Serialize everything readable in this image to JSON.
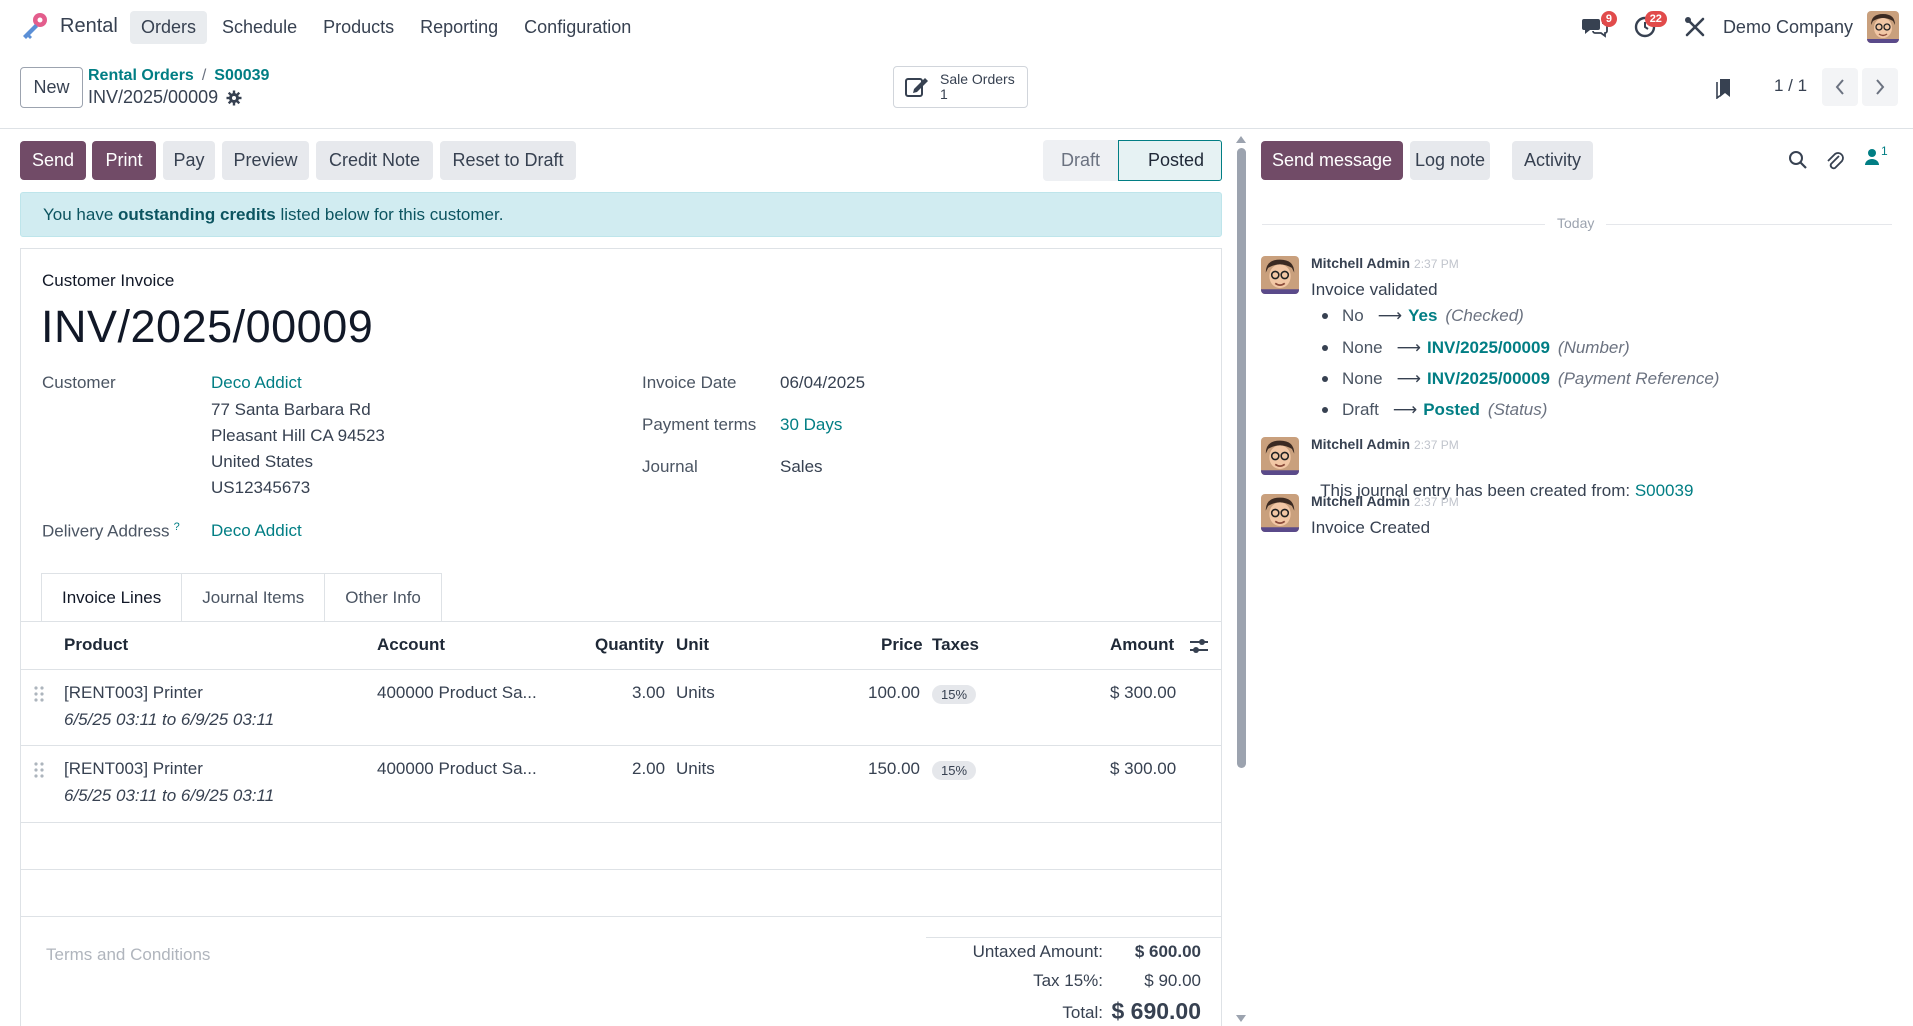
{
  "navbar": {
    "app_name": "Rental",
    "menu": [
      "Orders",
      "Schedule",
      "Products",
      "Reporting",
      "Configuration"
    ],
    "messages_badge": "9",
    "activities_badge": "22",
    "company": "Demo Company"
  },
  "control": {
    "new_label": "New",
    "breadcrumb_parent": "Rental Orders",
    "breadcrumb_sep": "/",
    "breadcrumb_child": "S00039",
    "record_name": "INV/2025/00009",
    "smart_button_label": "Sale Orders",
    "smart_button_count": "1",
    "pager": "1 / 1"
  },
  "actions": {
    "send": "Send",
    "print": "Print",
    "pay": "Pay",
    "preview": "Preview",
    "credit_note": "Credit Note",
    "reset": "Reset to Draft",
    "status_draft": "Draft",
    "status_posted": "Posted"
  },
  "alert": {
    "pre": "You have ",
    "bold": "outstanding credits",
    "post": " listed below for this customer."
  },
  "invoice": {
    "doc_type": "Customer Invoice",
    "name": "INV/2025/00009",
    "customer_label": "Customer",
    "customer": "Deco Addict",
    "address": [
      "77 Santa Barbara Rd",
      "Pleasant Hill CA 94523",
      "United States",
      "US12345673"
    ],
    "delivery_label": "Delivery Address",
    "delivery_help": "?",
    "delivery": "Deco Addict",
    "date_label": "Invoice Date",
    "date": "06/04/2025",
    "terms_label": "Payment terms",
    "terms": "30 Days",
    "journal_label": "Journal",
    "journal": "Sales"
  },
  "tabs": [
    "Invoice Lines",
    "Journal Items",
    "Other Info"
  ],
  "lines": {
    "headers": {
      "product": "Product",
      "account": "Account",
      "quantity": "Quantity",
      "unit": "Unit",
      "price": "Price",
      "taxes": "Taxes",
      "amount": "Amount"
    },
    "rows": [
      {
        "product": "[RENT003] Printer",
        "period": "6/5/25 03:11 to 6/9/25 03:11",
        "account": "400000 Product Sa...",
        "quantity": "3.00",
        "unit": "Units",
        "price": "100.00",
        "tax": "15%",
        "amount": "$ 300.00"
      },
      {
        "product": "[RENT003] Printer",
        "period": "6/5/25 03:11 to 6/9/25 03:11",
        "account": "400000 Product Sa...",
        "quantity": "2.00",
        "unit": "Units",
        "price": "150.00",
        "tax": "15%",
        "amount": "$ 300.00"
      }
    ]
  },
  "footer": {
    "terms_placeholder": "Terms and Conditions",
    "untaxed_label": "Untaxed Amount:",
    "untaxed": "$ 600.00",
    "tax_label": "Tax 15%:",
    "tax": "$ 90.00",
    "total_label": "Total:",
    "total": "$ 690.00"
  },
  "chatter": {
    "send_message": "Send message",
    "log_note": "Log note",
    "activity": "Activity",
    "followers_count": "1",
    "today": "Today",
    "messages": [
      {
        "author": "Mitchell Admin",
        "time": "2:37 PM",
        "body": "Invoice validated",
        "tracking": [
          {
            "old": "No",
            "new": "Yes",
            "field": "(Checked)"
          },
          {
            "old": "None",
            "new": "INV/2025/00009",
            "field": "(Number)"
          },
          {
            "old": "None",
            "new": "INV/2025/00009",
            "field": "(Payment Reference)"
          },
          {
            "old": "Draft",
            "new": "Posted",
            "field": "(Status)"
          }
        ]
      },
      {
        "author": "Mitchell Admin",
        "time": "2:37 PM",
        "body": "This journal entry has been created from: ",
        "link": "S00039"
      },
      {
        "author": "Mitchell Admin",
        "time": "2:37 PM",
        "body": "Invoice Created"
      }
    ]
  },
  "colors": {
    "primary": "#714b67",
    "link": "#017e84",
    "alert_bg": "#d1ecf1"
  }
}
